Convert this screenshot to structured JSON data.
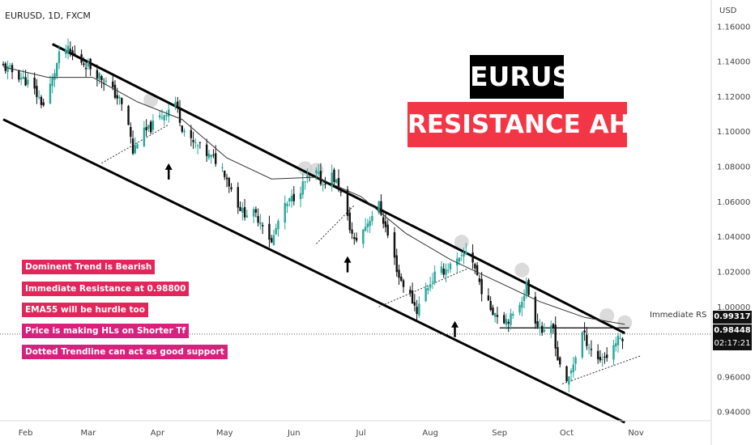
{
  "header": {
    "symbol": "EURUSD, 1D, FXCM",
    "currency": "USD"
  },
  "titles": {
    "line1": "EURUSD",
    "line2": "RESISTANCE AHEAD"
  },
  "notes": [
    "Dominent Trend is Bearish",
    "Immediate Resistance at 0.98800",
    "EMA55 will be hurdle too",
    "Price is making HLs on Shorter Tf",
    "Dotted Trendline can act as good support"
  ],
  "annotations": {
    "rs_label": "Immediate RS"
  },
  "price_tags": {
    "resistance": "0.99317",
    "last": "0.98448",
    "countdown": "02:17:21"
  },
  "colors": {
    "up": "#26a69a",
    "down": "#111111",
    "title_bg_1": "#000000",
    "title_bg_2": "#f23645",
    "note_bg": "#e0265a"
  },
  "chart_data": {
    "type": "candlestick",
    "symbol": "EURUSD",
    "timeframe": "1D",
    "ylim": [
      0.935,
      1.165
    ],
    "y_ticks": [
      "1.16000",
      "1.14000",
      "1.12000",
      "1.10000",
      "1.08000",
      "1.06000",
      "1.04000",
      "1.02000",
      "1.00000",
      "0.98000",
      "0.96000",
      "0.94000"
    ],
    "x_ticks": [
      "Feb",
      "Mar",
      "Apr",
      "May",
      "Jun",
      "Jul",
      "Aug",
      "Sep",
      "Oct",
      "Nov"
    ],
    "close_path": [
      [
        0,
        1.137
      ],
      [
        6,
        1.133
      ],
      [
        12,
        1.127
      ],
      [
        18,
        1.115
      ],
      [
        22,
        1.13
      ],
      [
        25,
        1.143
      ],
      [
        28,
        1.147
      ],
      [
        34,
        1.141
      ],
      [
        40,
        1.136
      ],
      [
        46,
        1.128
      ],
      [
        52,
        1.118
      ],
      [
        56,
        1.104
      ],
      [
        58,
        1.088
      ],
      [
        61,
        1.098
      ],
      [
        65,
        1.101
      ],
      [
        70,
        1.108
      ],
      [
        74,
        1.113
      ],
      [
        77,
        1.117
      ],
      [
        80,
        1.103
      ],
      [
        84,
        1.094
      ],
      [
        88,
        1.091
      ],
      [
        92,
        1.086
      ],
      [
        96,
        1.083
      ],
      [
        99,
        1.077
      ],
      [
        103,
        1.064
      ],
      [
        107,
        1.054
      ],
      [
        112,
        1.053
      ],
      [
        117,
        1.047
      ],
      [
        120,
        1.036
      ],
      [
        124,
        1.053
      ],
      [
        128,
        1.06
      ],
      [
        132,
        1.066
      ],
      [
        136,
        1.073
      ],
      [
        140,
        1.076
      ],
      [
        143,
        1.07
      ],
      [
        146,
        1.077
      ],
      [
        150,
        1.069
      ],
      [
        154,
        1.05
      ],
      [
        157,
        1.037
      ],
      [
        161,
        1.044
      ],
      [
        165,
        1.053
      ],
      [
        168,
        1.058
      ],
      [
        171,
        1.045
      ],
      [
        174,
        1.032
      ],
      [
        177,
        1.017
      ],
      [
        181,
        1.009
      ],
      [
        185,
        0.998
      ],
      [
        189,
        1.01
      ],
      [
        193,
        1.018
      ],
      [
        197,
        1.021
      ],
      [
        201,
        1.024
      ],
      [
        205,
        1.027
      ],
      [
        208,
        1.035
      ],
      [
        212,
        1.018
      ],
      [
        216,
        1.002
      ],
      [
        220,
        0.997
      ],
      [
        224,
        0.993
      ],
      [
        228,
        0.994
      ],
      [
        232,
        1.005
      ],
      [
        234,
        1.012
      ],
      [
        238,
        0.993
      ],
      [
        242,
        0.984
      ],
      [
        246,
        0.988
      ],
      [
        248,
        0.97
      ],
      [
        250,
        0.966
      ],
      [
        252,
        0.955
      ],
      [
        255,
        0.968
      ],
      [
        259,
        0.985
      ],
      [
        262,
        0.978
      ],
      [
        266,
        0.97
      ],
      [
        270,
        0.972
      ],
      [
        274,
        0.98
      ],
      [
        278,
        0.984
      ]
    ],
    "ema55": [
      [
        0,
        1.137
      ],
      [
        20,
        1.131
      ],
      [
        40,
        1.131
      ],
      [
        60,
        1.117
      ],
      [
        80,
        1.107
      ],
      [
        100,
        1.085
      ],
      [
        120,
        1.073
      ],
      [
        140,
        1.074
      ],
      [
        160,
        1.063
      ],
      [
        180,
        1.042
      ],
      [
        200,
        1.027
      ],
      [
        220,
        1.015
      ],
      [
        240,
        1.003
      ],
      [
        260,
        0.994
      ],
      [
        278,
        0.99
      ]
    ],
    "channel_upper": [
      [
        22,
        1.15
      ],
      [
        278,
        0.985
      ]
    ],
    "channel_lower": [
      [
        0,
        1.107
      ],
      [
        278,
        0.934
      ]
    ],
    "resistance_level": 0.988,
    "dotted_trendlines": [
      [
        [
          44,
          1.082
        ],
        [
          74,
          1.104
        ]
      ],
      [
        [
          140,
          1.036
        ],
        [
          157,
          1.058
        ]
      ],
      [
        [
          168,
          1.0
        ],
        [
          208,
          1.022
        ]
      ],
      [
        [
          250,
          0.956
        ],
        [
          285,
          0.972
        ]
      ]
    ],
    "arrows_up_at": [
      [
        74,
        1.081
      ],
      [
        154,
        1.028
      ],
      [
        202,
        0.991
      ]
    ],
    "highlight_circles_at": [
      [
        66,
        1.118
      ],
      [
        135,
        1.079
      ],
      [
        140,
        1.078
      ],
      [
        205,
        1.037
      ],
      [
        232,
        1.021
      ],
      [
        270,
        0.995
      ],
      [
        278,
        0.991
      ]
    ]
  }
}
